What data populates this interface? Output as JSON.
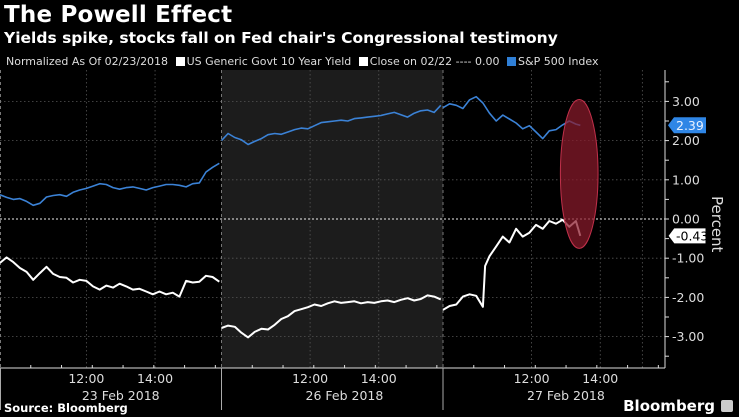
{
  "header": {
    "title": "The Powell Effect",
    "subtitle": "Yields spike, stocks fall on Fed chair's Congressional testimony"
  },
  "legend": {
    "normalized_label": "Normalized As Of 02/23/2018",
    "items": [
      {
        "label": "US Generic Govt 10 Year Yield",
        "color": "#ffffff"
      },
      {
        "label": "Close on 02/22 ---- 0.00",
        "color": "#ffffff"
      },
      {
        "label": "S&P 500 Index",
        "color": "#2f7fd6"
      }
    ]
  },
  "footer": {
    "source": "Source: Bloomberg",
    "brand": "Bloomberg"
  },
  "colors": {
    "spx": "#3b82d6",
    "yield": "#ffffff",
    "shade": "#1c1c1c",
    "highlight": "#8b1a2b"
  },
  "chart_data": {
    "type": "line",
    "title": "The Powell Effect",
    "subtitle": "Yields spike, stocks fall on Fed chair's Congressional testimony",
    "ylabel": "Percent",
    "ylim": [
      -3.6,
      3.8
    ],
    "yticks": [
      "3.00",
      "2.00",
      "1.00",
      "0.00",
      "-1.00",
      "-2.00",
      "-3.00"
    ],
    "ytick_values": [
      3,
      2,
      1,
      0,
      -1,
      -2,
      -3
    ],
    "xlim": [
      0,
      3.0
    ],
    "x_sessions": [
      {
        "date": "23 Feb 2018",
        "start": 0,
        "end": 1,
        "ticks": [
          "12:00",
          "14:00"
        ],
        "tick_pos": [
          0.39,
          0.7
        ]
      },
      {
        "date": "26 Feb 2018",
        "start": 1,
        "end": 2,
        "ticks": [
          "12:00",
          "14:00"
        ],
        "tick_pos": [
          1.4,
          1.71
        ]
      },
      {
        "date": "27 Feb 2018",
        "start": 2,
        "end": 3,
        "ticks": [
          "12:00",
          "14:00"
        ],
        "tick_pos": [
          2.4,
          2.71
        ]
      }
    ],
    "shaded_session": "26 Feb 2018",
    "reference_line": {
      "label": "Close on 02/22",
      "value": 0.0
    },
    "grid": true,
    "series": [
      {
        "name": "S&P 500 Index",
        "color": "#3b82d6",
        "last_value": 2.39,
        "x": [
          0,
          0.03,
          0.06,
          0.09,
          0.12,
          0.15,
          0.18,
          0.21,
          0.24,
          0.27,
          0.3,
          0.33,
          0.36,
          0.39,
          0.42,
          0.45,
          0.48,
          0.51,
          0.54,
          0.57,
          0.6,
          0.63,
          0.66,
          0.69,
          0.72,
          0.75,
          0.78,
          0.81,
          0.84,
          0.87,
          0.9,
          0.93,
          0.96,
          0.99,
          1.0,
          1.03,
          1.06,
          1.09,
          1.12,
          1.15,
          1.18,
          1.21,
          1.24,
          1.27,
          1.3,
          1.33,
          1.36,
          1.39,
          1.42,
          1.45,
          1.48,
          1.51,
          1.54,
          1.57,
          1.6,
          1.63,
          1.66,
          1.69,
          1.72,
          1.75,
          1.78,
          1.81,
          1.84,
          1.87,
          1.9,
          1.93,
          1.96,
          1.99,
          2.0,
          2.03,
          2.06,
          2.09,
          2.12,
          2.15,
          2.18,
          2.21,
          2.24,
          2.27,
          2.3,
          2.33,
          2.36,
          2.39,
          2.42,
          2.45,
          2.48,
          2.51,
          2.54,
          2.57,
          2.6,
          2.62
        ],
        "values": [
          0.62,
          0.55,
          0.5,
          0.52,
          0.45,
          0.35,
          0.4,
          0.56,
          0.6,
          0.62,
          0.58,
          0.68,
          0.74,
          0.78,
          0.84,
          0.9,
          0.88,
          0.8,
          0.76,
          0.8,
          0.82,
          0.78,
          0.74,
          0.8,
          0.84,
          0.88,
          0.88,
          0.86,
          0.82,
          0.9,
          0.92,
          1.2,
          1.32,
          1.42,
          2.0,
          2.18,
          2.08,
          2.02,
          1.9,
          1.98,
          2.05,
          2.15,
          2.18,
          2.16,
          2.22,
          2.28,
          2.32,
          2.3,
          2.38,
          2.46,
          2.48,
          2.5,
          2.52,
          2.5,
          2.56,
          2.58,
          2.6,
          2.62,
          2.64,
          2.68,
          2.72,
          2.66,
          2.6,
          2.7,
          2.76,
          2.78,
          2.72,
          2.9,
          2.84,
          2.94,
          2.9,
          2.82,
          3.04,
          3.12,
          2.96,
          2.7,
          2.5,
          2.65,
          2.55,
          2.45,
          2.3,
          2.38,
          2.22,
          2.05,
          2.25,
          2.28,
          2.4,
          2.5,
          2.42,
          2.39
        ]
      },
      {
        "name": "US Generic Govt 10 Year Yield",
        "color": "#ffffff",
        "last_value": -0.43,
        "x": [
          0,
          0.03,
          0.06,
          0.09,
          0.12,
          0.15,
          0.18,
          0.21,
          0.24,
          0.27,
          0.3,
          0.33,
          0.36,
          0.39,
          0.42,
          0.45,
          0.48,
          0.51,
          0.54,
          0.57,
          0.6,
          0.63,
          0.66,
          0.69,
          0.72,
          0.75,
          0.78,
          0.81,
          0.84,
          0.87,
          0.9,
          0.93,
          0.96,
          0.99,
          1.0,
          1.03,
          1.06,
          1.09,
          1.12,
          1.15,
          1.18,
          1.21,
          1.24,
          1.27,
          1.3,
          1.33,
          1.36,
          1.39,
          1.42,
          1.45,
          1.48,
          1.51,
          1.54,
          1.57,
          1.6,
          1.63,
          1.66,
          1.69,
          1.72,
          1.75,
          1.78,
          1.81,
          1.84,
          1.87,
          1.9,
          1.93,
          1.96,
          1.99,
          2.0,
          2.03,
          2.06,
          2.09,
          2.12,
          2.15,
          2.18,
          2.19,
          2.21,
          2.24,
          2.27,
          2.3,
          2.33,
          2.36,
          2.39,
          2.42,
          2.45,
          2.48,
          2.51,
          2.54,
          2.57,
          2.6,
          2.62
        ],
        "values": [
          -1.12,
          -0.98,
          -1.1,
          -1.25,
          -1.35,
          -1.55,
          -1.38,
          -1.22,
          -1.4,
          -1.48,
          -1.5,
          -1.62,
          -1.55,
          -1.58,
          -1.72,
          -1.8,
          -1.7,
          -1.75,
          -1.65,
          -1.72,
          -1.8,
          -1.78,
          -1.85,
          -1.92,
          -1.85,
          -1.92,
          -1.88,
          -1.98,
          -1.58,
          -1.62,
          -1.6,
          -1.45,
          -1.48,
          -1.6,
          -2.78,
          -2.72,
          -2.75,
          -2.9,
          -3.02,
          -2.88,
          -2.8,
          -2.82,
          -2.7,
          -2.55,
          -2.48,
          -2.35,
          -2.3,
          -2.25,
          -2.18,
          -2.22,
          -2.15,
          -2.1,
          -2.14,
          -2.12,
          -2.1,
          -2.15,
          -2.12,
          -2.14,
          -2.1,
          -2.08,
          -2.12,
          -2.06,
          -2.02,
          -2.08,
          -2.04,
          -1.95,
          -1.98,
          -2.05,
          -2.32,
          -2.22,
          -2.18,
          -1.98,
          -1.92,
          -1.96,
          -2.24,
          -1.2,
          -0.95,
          -0.7,
          -0.45,
          -0.6,
          -0.25,
          -0.45,
          -0.35,
          -0.15,
          -0.25,
          -0.05,
          -0.12,
          -0.02,
          -0.2,
          -0.05,
          -0.43
        ]
      }
    ],
    "annotations": [
      {
        "type": "ellipse-highlight",
        "description": "Red oval highlighting latest moves on 27 Feb afternoon",
        "x_range": [
          2.53,
          2.7
        ],
        "y_range": [
          -0.75,
          3.05
        ]
      }
    ]
  }
}
